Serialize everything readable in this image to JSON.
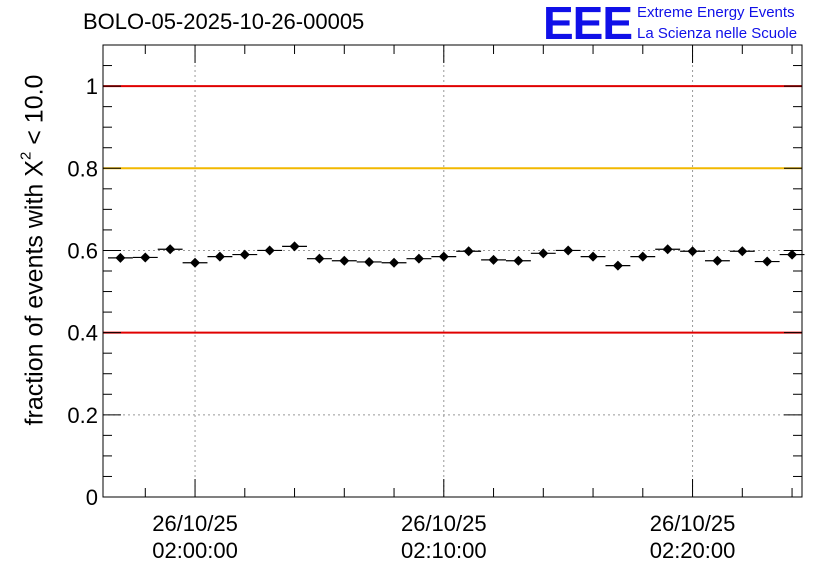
{
  "title": "BOLO-05-2025-10-26-00005",
  "logo": {
    "mark": "EEE",
    "line1": "Extreme Energy Events",
    "line2": "La Scienza nelle Scuole",
    "color": "#1010e8"
  },
  "chart_data": {
    "type": "scatter",
    "title": "BOLO-05-2025-10-26-00005",
    "ylabel_parts": [
      "fraction of events with X",
      "2",
      " < 10.0"
    ],
    "xlabel": "",
    "ylim": [
      0,
      1.1
    ],
    "xlim_minutes_after_0200": [
      -3.7,
      24.4
    ],
    "yticks": [
      0,
      0.2,
      0.4,
      0.6,
      0.8,
      1
    ],
    "ytick_labels": [
      "0",
      "0.2",
      "0.4",
      "0.6",
      "0.8",
      "1"
    ],
    "xticks": [
      {
        "minutes": 0,
        "date": "26/10/25",
        "time": "02:00:00"
      },
      {
        "minutes": 10,
        "date": "26/10/25",
        "time": "02:10:00"
      },
      {
        "minutes": 20,
        "date": "26/10/25",
        "time": "02:20:00"
      }
    ],
    "minor_xtick_step_minutes": 2,
    "grid": true,
    "bin_width_minutes": 1,
    "x_minutes": [
      -3,
      -2,
      -1,
      0,
      1,
      2,
      3,
      4,
      5,
      6,
      7,
      8,
      9,
      10,
      11,
      12,
      13,
      14,
      15,
      16,
      17,
      18,
      19,
      20,
      21,
      22,
      23,
      24
    ],
    "values": [
      0.582,
      0.583,
      0.603,
      0.57,
      0.585,
      0.59,
      0.6,
      0.61,
      0.58,
      0.575,
      0.572,
      0.57,
      0.58,
      0.585,
      0.598,
      0.577,
      0.575,
      0.593,
      0.6,
      0.585,
      0.563,
      0.585,
      0.603,
      0.598,
      0.575,
      0.598,
      0.573,
      0.59
    ],
    "errors": [
      0.008,
      0.008,
      0.008,
      0.008,
      0.008,
      0.008,
      0.008,
      0.008,
      0.008,
      0.008,
      0.008,
      0.008,
      0.008,
      0.008,
      0.008,
      0.008,
      0.008,
      0.008,
      0.008,
      0.008,
      0.008,
      0.008,
      0.008,
      0.008,
      0.008,
      0.008,
      0.008,
      0.008
    ],
    "reference_lines": [
      {
        "y": 1.0,
        "color": "#e00000"
      },
      {
        "y": 0.8,
        "color": "#f2b800"
      },
      {
        "y": 0.4,
        "color": "#e00000"
      }
    ]
  }
}
